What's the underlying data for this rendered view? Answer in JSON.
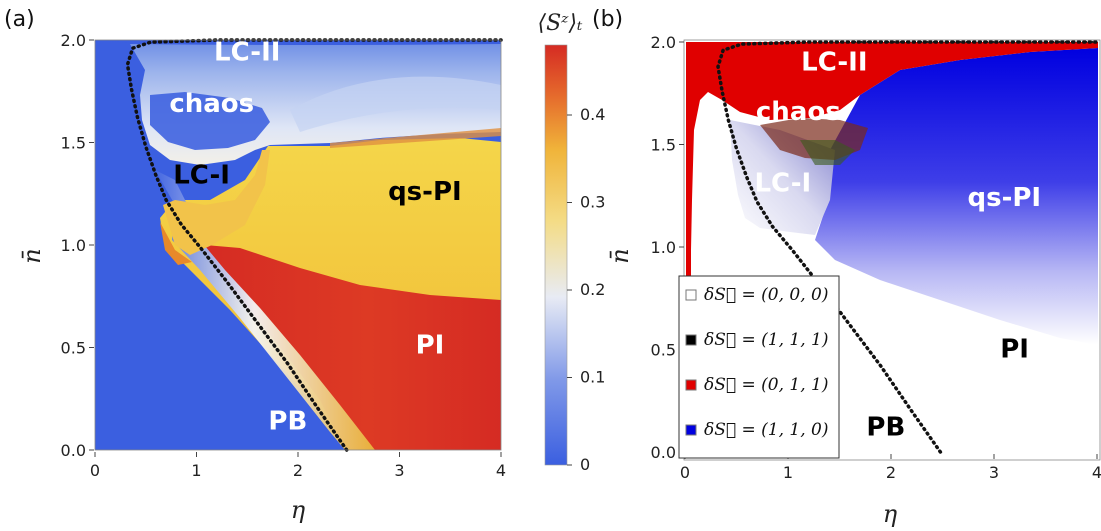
{
  "colors": {
    "blue": "#3b5fe0",
    "white": "#f2f2f2",
    "yellow": "#f2d13a",
    "red": "#d52b23",
    "legend_white": "#ffffff",
    "legend_black": "#000000",
    "legend_red": "#e00000",
    "legend_blue": "#0000e0"
  },
  "chart_data": [
    {
      "panel_label": "(a)",
      "type": "heatmap",
      "xlabel": "η",
      "ylabel": "n̄",
      "xlim": [
        0,
        4
      ],
      "ylim": [
        0,
        2
      ],
      "x_ticks": [
        "0",
        "1",
        "2",
        "3",
        "4"
      ],
      "y_ticks": [
        "0.0",
        "0.5",
        "1.0",
        "1.5",
        "2.0"
      ],
      "colorbar": {
        "label": "⟨Sᶻ⟩ₜ",
        "ticks": [
          "0",
          "0.1",
          "0.2",
          "0.3",
          "0.4"
        ],
        "range": [
          0,
          0.48
        ]
      },
      "regions": [
        {
          "label": "LC-II",
          "x": 1.5,
          "y": 1.9,
          "color": "#ffffff"
        },
        {
          "label": "chaos",
          "x": 1.15,
          "y": 1.65,
          "color": "#ffffff"
        },
        {
          "label": "LC-I",
          "x": 1.05,
          "y": 1.3,
          "color": "#000000"
        },
        {
          "label": "qs-PI",
          "x": 3.25,
          "y": 1.22,
          "color": "#000000"
        },
        {
          "label": "PI",
          "x": 3.3,
          "y": 0.47,
          "color": "#ffffff"
        },
        {
          "label": "PB",
          "x": 1.9,
          "y": 0.1,
          "color": "#ffffff"
        }
      ],
      "dotted_boundary": [
        [
          2.48,
          0.0
        ],
        [
          2.2,
          0.2
        ],
        [
          1.9,
          0.42
        ],
        [
          1.6,
          0.62
        ],
        [
          1.3,
          0.82
        ],
        [
          1.05,
          0.98
        ],
        [
          0.85,
          1.1
        ],
        [
          0.7,
          1.22
        ],
        [
          0.6,
          1.34
        ],
        [
          0.5,
          1.48
        ],
        [
          0.42,
          1.62
        ],
        [
          0.36,
          1.76
        ],
        [
          0.32,
          1.88
        ],
        [
          0.37,
          1.96
        ],
        [
          0.55,
          1.99
        ],
        [
          1.2,
          2.0
        ],
        [
          4.0,
          2.0
        ]
      ]
    },
    {
      "panel_label": "(b)",
      "type": "heatmap",
      "xlabel": "η",
      "ylabel": "n̄",
      "xlim": [
        0,
        4
      ],
      "ylim": [
        0,
        2
      ],
      "x_ticks": [
        "0",
        "1",
        "2",
        "3",
        "4"
      ],
      "y_ticks": [
        "0.0",
        "0.5",
        "1.0",
        "1.5",
        "2.0"
      ],
      "regions": [
        {
          "label": "LC-II",
          "x": 1.45,
          "y": 1.86,
          "color": "#ffffff"
        },
        {
          "label": "chaos",
          "x": 1.1,
          "y": 1.62,
          "color": "#ffffff"
        },
        {
          "label": "LC-I",
          "x": 0.95,
          "y": 1.27,
          "color": "#ffffff"
        },
        {
          "label": "qs-PI",
          "x": 3.1,
          "y": 1.2,
          "color": "#ffffff"
        },
        {
          "label": "PI",
          "x": 3.2,
          "y": 0.46,
          "color": "#000000"
        },
        {
          "label": "PB",
          "x": 1.95,
          "y": 0.08,
          "color": "#000000"
        }
      ],
      "legend": {
        "placement": "lower-left",
        "entries": [
          {
            "label": "δS⃗ = (0, 0, 0)",
            "color": "#ffffff"
          },
          {
            "label": "δS⃗ = (1, 1, 1)",
            "color": "#000000"
          },
          {
            "label": "δS⃗ = (0, 1, 1)",
            "color": "#e00000"
          },
          {
            "label": "δS⃗ = (1, 1, 0)",
            "color": "#0000e0"
          }
        ]
      },
      "dotted_boundary": [
        [
          2.48,
          0.0
        ],
        [
          2.2,
          0.2
        ],
        [
          1.9,
          0.42
        ],
        [
          1.6,
          0.62
        ],
        [
          1.3,
          0.82
        ],
        [
          1.05,
          0.98
        ],
        [
          0.85,
          1.1
        ],
        [
          0.7,
          1.22
        ],
        [
          0.6,
          1.34
        ],
        [
          0.5,
          1.48
        ],
        [
          0.42,
          1.62
        ],
        [
          0.36,
          1.76
        ],
        [
          0.32,
          1.88
        ],
        [
          0.37,
          1.96
        ],
        [
          0.55,
          1.99
        ],
        [
          1.2,
          2.0
        ],
        [
          4.0,
          2.0
        ]
      ]
    }
  ]
}
